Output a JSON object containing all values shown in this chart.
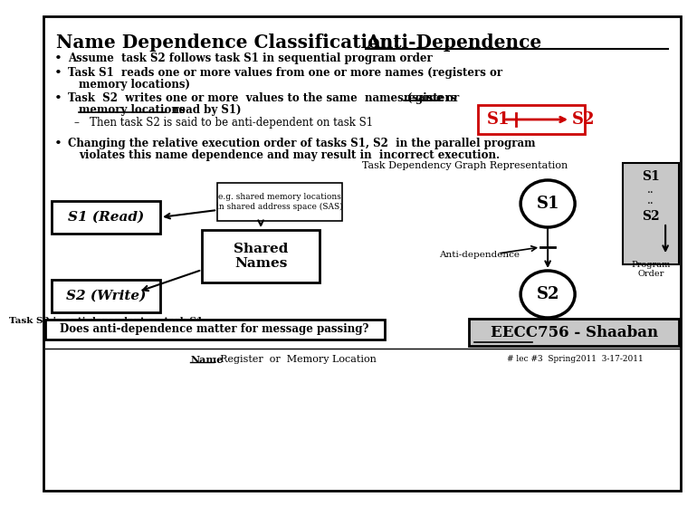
{
  "title_normal": "Name Dependence Classification: ",
  "title_underline": "Anti-Dependence",
  "bg_color": "#ffffff",
  "border_color": "#000000",
  "bullet1": "Assume  task S2 follows task S1 in sequential program order",
  "bullet2a": "Task S1  reads one or more values from one or more names (registers or",
  "bullet2b": "memory locations)",
  "bullet3a": "Task  S2  writes one or more  values to the same  names (same ",
  "bullet3b": "registers",
  "bullet3c": " or",
  "bullet3d": "memory locations",
  "bullet3e": "  read by S1)",
  "bullet3sub": "–   Then task S2 is said to be anti-dependent on task S1",
  "bullet4a": "Changing the relative execution order of tasks S1, S2  in the parallel program",
  "bullet4b": "violates this name dependence and may result in  incorrect execution.",
  "dep_graph_title": "Task Dependency Graph Representation",
  "anti_dep_label": "Anti-dependence",
  "task_s2_text": "Task S2 is anti-dependent on task S1",
  "bottom_question": "Does anti-dependence matter for message passing?",
  "bottom_name": "Name",
  "bottom_name_rest": ": Register  or  Memory Location",
  "eecc": "EECC756 - Shaaban",
  "footer": "# lec #3  Spring2011  3-17-2011",
  "red_color": "#cc0000",
  "black": "#000000",
  "light_gray": "#c8c8c8"
}
